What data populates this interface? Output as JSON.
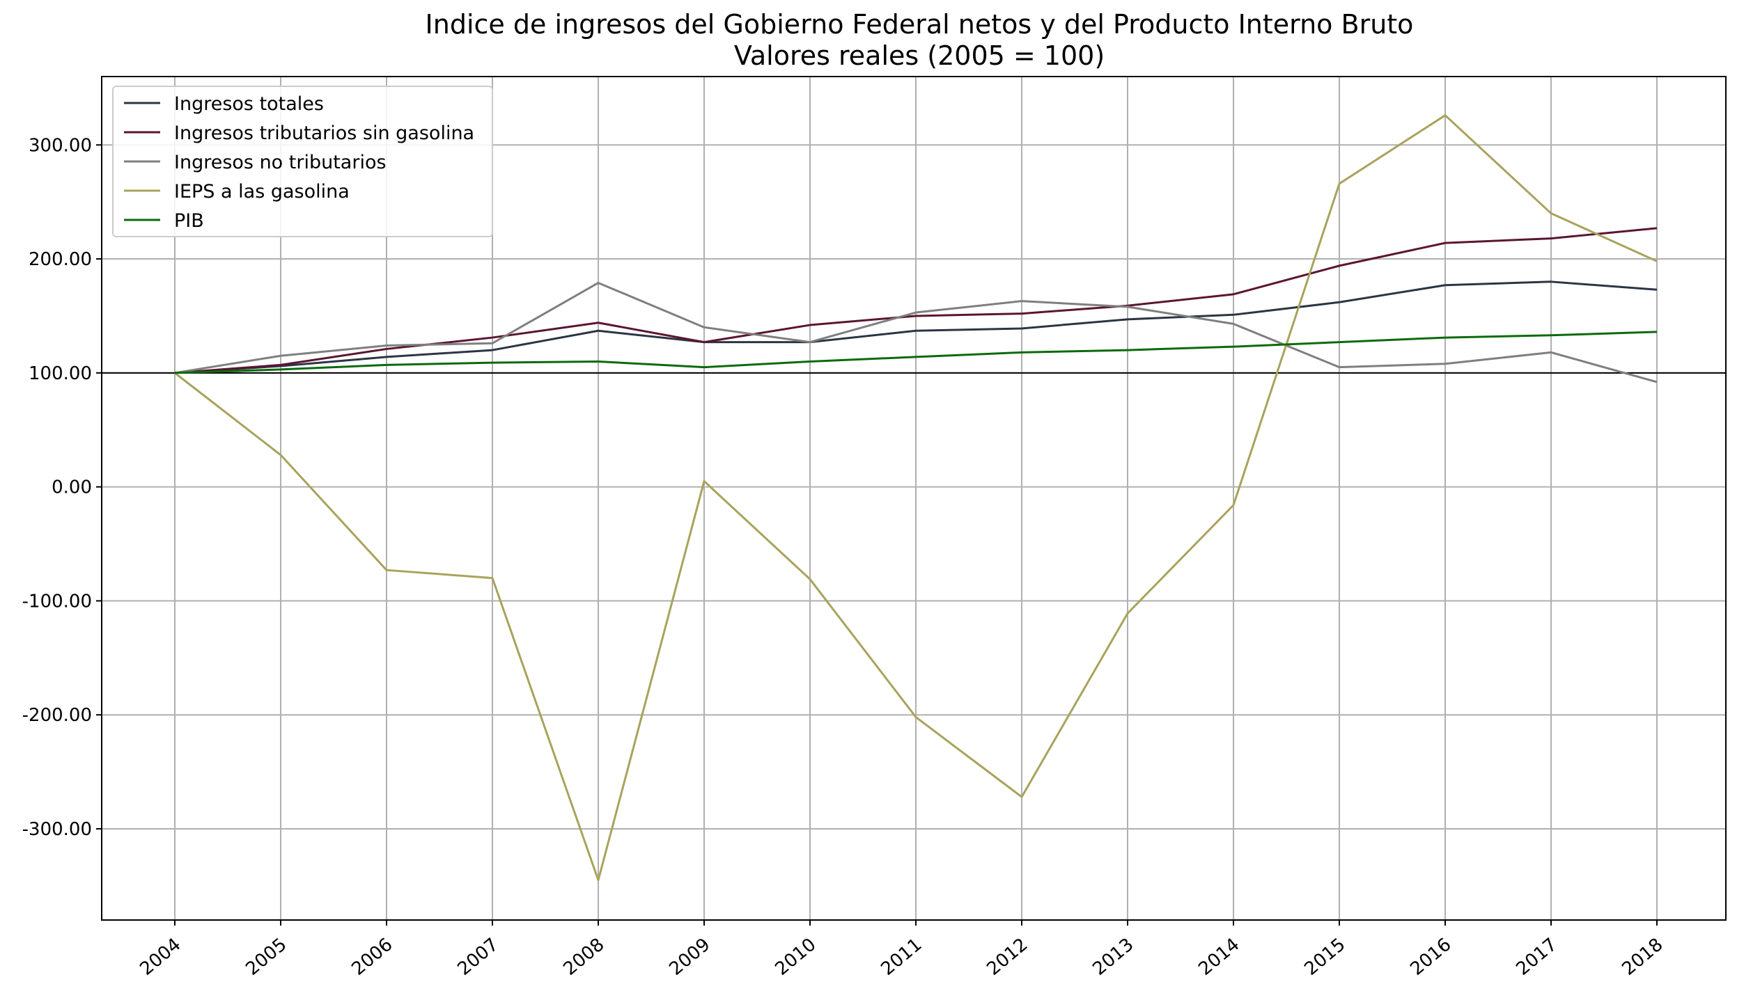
{
  "chart_data": {
    "type": "line",
    "title": "Indice de ingresos del Gobierno Federal netos y del Producto Interno Bruto",
    "subtitle": "Valores reales (2005 = 100)",
    "xlabel": "",
    "ylabel": "",
    "x": [
      "2004",
      "2005",
      "2006",
      "2007",
      "2008",
      "2009",
      "2010",
      "2011",
      "2012",
      "2013",
      "2014",
      "2015",
      "2016",
      "2017",
      "2018"
    ],
    "ylim": [
      -380,
      360
    ],
    "yticks": [
      300,
      200,
      100,
      0,
      -100,
      -200,
      -300
    ],
    "ytick_labels": [
      "300.00",
      "200.00",
      "100.00",
      "0.00",
      "-100.00",
      "-200.00",
      "-300.00"
    ],
    "reference_line": 100,
    "grid": true,
    "legend_position": "top-left",
    "series": [
      {
        "name": "Ingresos totales",
        "color": "#2b3544",
        "values": [
          100,
          106,
          114,
          120,
          137,
          127,
          127,
          137,
          139,
          147,
          151,
          162,
          177,
          180,
          173
        ]
      },
      {
        "name": "Ingresos tributarios sin gasolina",
        "color": "#5c1530",
        "values": [
          100,
          107,
          121,
          131,
          144,
          127,
          142,
          150,
          152,
          159,
          169,
          194,
          214,
          218,
          227
        ]
      },
      {
        "name": "Ingresos no tributarios",
        "color": "#7f7f7f",
        "values": [
          100,
          115,
          124,
          126,
          179,
          140,
          127,
          153,
          163,
          158,
          143,
          105,
          108,
          118,
          92
        ]
      },
      {
        "name": "IEPS a las gasolina",
        "color": "#a8a35c",
        "values": [
          100,
          28,
          -73,
          -80,
          -345,
          5,
          -81,
          -202,
          -272,
          -111,
          -16,
          266,
          326,
          240,
          198
        ]
      },
      {
        "name": "PIB",
        "color": "#0a6b0a",
        "values": [
          100,
          103,
          107,
          109,
          110,
          105,
          110,
          114,
          118,
          120,
          123,
          127,
          131,
          133,
          136
        ]
      }
    ]
  }
}
